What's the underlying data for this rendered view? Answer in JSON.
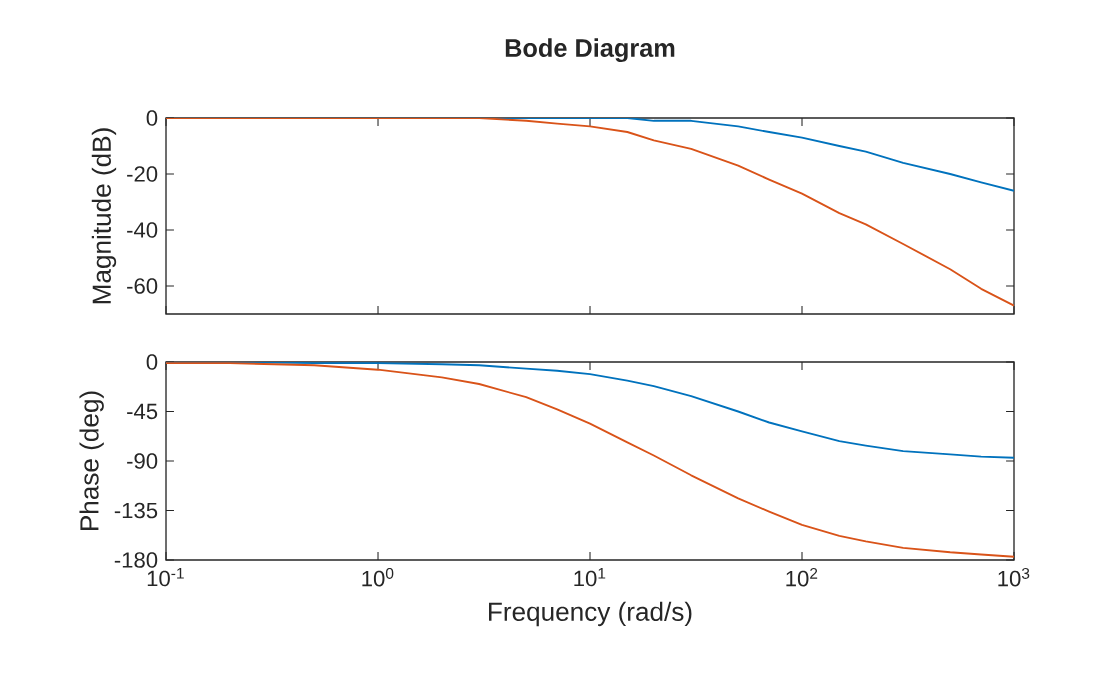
{
  "chart_data": [
    {
      "type": "line",
      "title": "Bode Diagram",
      "ylabel": "Magnitude (dB)",
      "log": "x",
      "tick_labels": "y",
      "xlim": [
        0.1,
        1000
      ],
      "ylim": [
        -70,
        0
      ],
      "xticks": [
        {
          "value": 0.1,
          "label": null
        },
        {
          "value": 1,
          "label": null
        },
        {
          "value": 10,
          "label": null
        },
        {
          "value": 100,
          "label": null
        },
        {
          "value": 1000,
          "label": null
        }
      ],
      "yticks": [
        -60,
        -40,
        -20,
        0
      ],
      "x": [
        0.1,
        0.2,
        0.5,
        1,
        2,
        3,
        5,
        7,
        10,
        15,
        20,
        30,
        50,
        70,
        100,
        150,
        200,
        300,
        500,
        700,
        1000
      ],
      "series": [
        {
          "color": "#0072bd",
          "values": [
            null,
            null,
            null,
            null,
            null,
            0,
            0,
            0,
            0,
            0,
            -1,
            -1,
            -3,
            -5,
            -7,
            -10,
            -12,
            -16,
            -20,
            -23,
            -26
          ]
        },
        {
          "color": "#d95319",
          "values": [
            0,
            0,
            0,
            0,
            0,
            0,
            -1,
            -2,
            -3,
            -5,
            -8,
            -11,
            -17,
            -22,
            -27,
            -34,
            -38,
            -45,
            -54,
            -61,
            -67
          ]
        }
      ]
    },
    {
      "type": "line",
      "xlabel": "Frequency (rad/s)",
      "ylabel": "Phase (deg)",
      "log": "x",
      "xlim": [
        0.1,
        1000
      ],
      "ylim": [
        -180,
        0
      ],
      "xticks": [
        {
          "value": 0.1,
          "label": "10$^{-1}$"
        },
        {
          "value": 1,
          "label": "10$^{0}$"
        },
        {
          "value": 10,
          "label": "10$^{1}$"
        },
        {
          "value": 100,
          "label": "10$^{2}$"
        },
        {
          "value": 1000,
          "label": "10$^{3}$"
        }
      ],
      "yticks": [
        -180,
        -135,
        -90,
        -45,
        0
      ],
      "x": [
        0.1,
        0.2,
        0.5,
        1,
        2,
        3,
        5,
        7,
        10,
        15,
        20,
        30,
        50,
        70,
        100,
        150,
        200,
        300,
        500,
        700,
        1000
      ],
      "series": [
        {
          "color": "#0072bd",
          "values": [
            0,
            0,
            -1,
            -1,
            -2,
            -3,
            -6,
            -8,
            -11,
            -17,
            -22,
            -31,
            -45,
            -55,
            -63,
            -72,
            -76,
            -81,
            -84,
            -86,
            -87
          ]
        },
        {
          "color": "#d95319",
          "values": [
            -1,
            -1,
            -3,
            -7,
            -14,
            -20,
            -32,
            -43,
            -56,
            -73,
            -85,
            -103,
            -124,
            -136,
            -148,
            -158,
            -163,
            -169,
            -173,
            -175,
            -177
          ]
        }
      ]
    }
  ]
}
